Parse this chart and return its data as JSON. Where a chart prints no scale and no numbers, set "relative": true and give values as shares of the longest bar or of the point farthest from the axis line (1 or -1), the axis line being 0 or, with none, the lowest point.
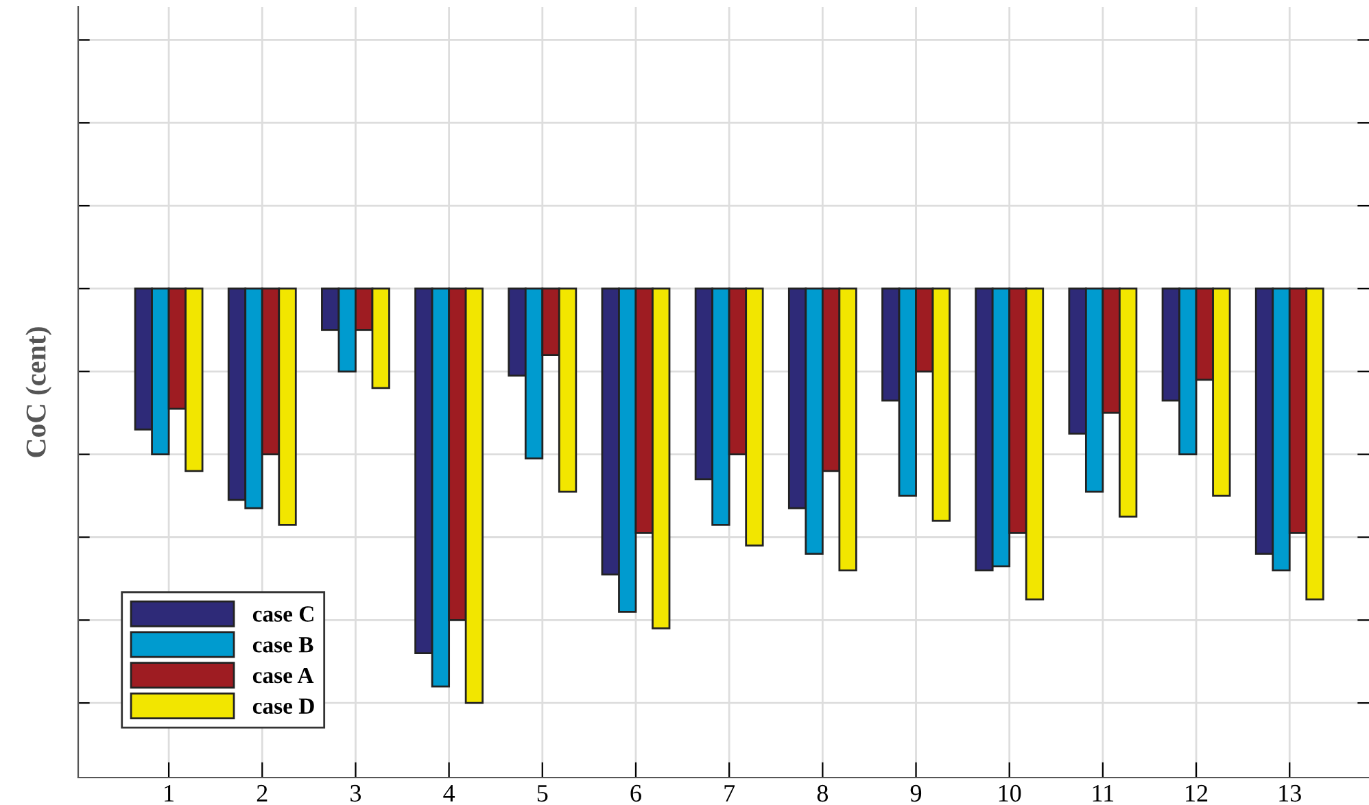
{
  "chart_data": {
    "type": "bar",
    "relative": true,
    "ylabel": "CoC (cent)",
    "categories": [
      "1",
      "2",
      "3",
      "4",
      "5",
      "6",
      "7",
      "8",
      "9",
      "10",
      "11",
      "12",
      "13"
    ],
    "series": [
      {
        "name": "case C",
        "color": "#2e2a78",
        "values": [
          -0.34,
          -0.51,
          -0.1,
          -0.88,
          -0.21,
          -0.69,
          -0.46,
          -0.53,
          -0.27,
          -0.68,
          -0.35,
          -0.27,
          -0.64
        ]
      },
      {
        "name": "case B",
        "color": "#009bcf",
        "values": [
          -0.4,
          -0.53,
          -0.2,
          -0.96,
          -0.41,
          -0.78,
          -0.57,
          -0.64,
          -0.5,
          -0.67,
          -0.49,
          -0.4,
          -0.68
        ]
      },
      {
        "name": "case A",
        "color": "#9e1c22",
        "values": [
          -0.29,
          -0.4,
          -0.1,
          -0.8,
          -0.16,
          -0.59,
          -0.4,
          -0.44,
          -0.2,
          -0.59,
          -0.3,
          -0.22,
          -0.59
        ]
      },
      {
        "name": "case D",
        "color": "#f2e600",
        "values": [
          -0.44,
          -0.57,
          -0.24,
          -1.0,
          -0.49,
          -0.82,
          -0.62,
          -0.68,
          -0.56,
          -0.75,
          -0.55,
          -0.5,
          -0.75
        ]
      }
    ],
    "grid": true,
    "legend": "bottom left"
  }
}
